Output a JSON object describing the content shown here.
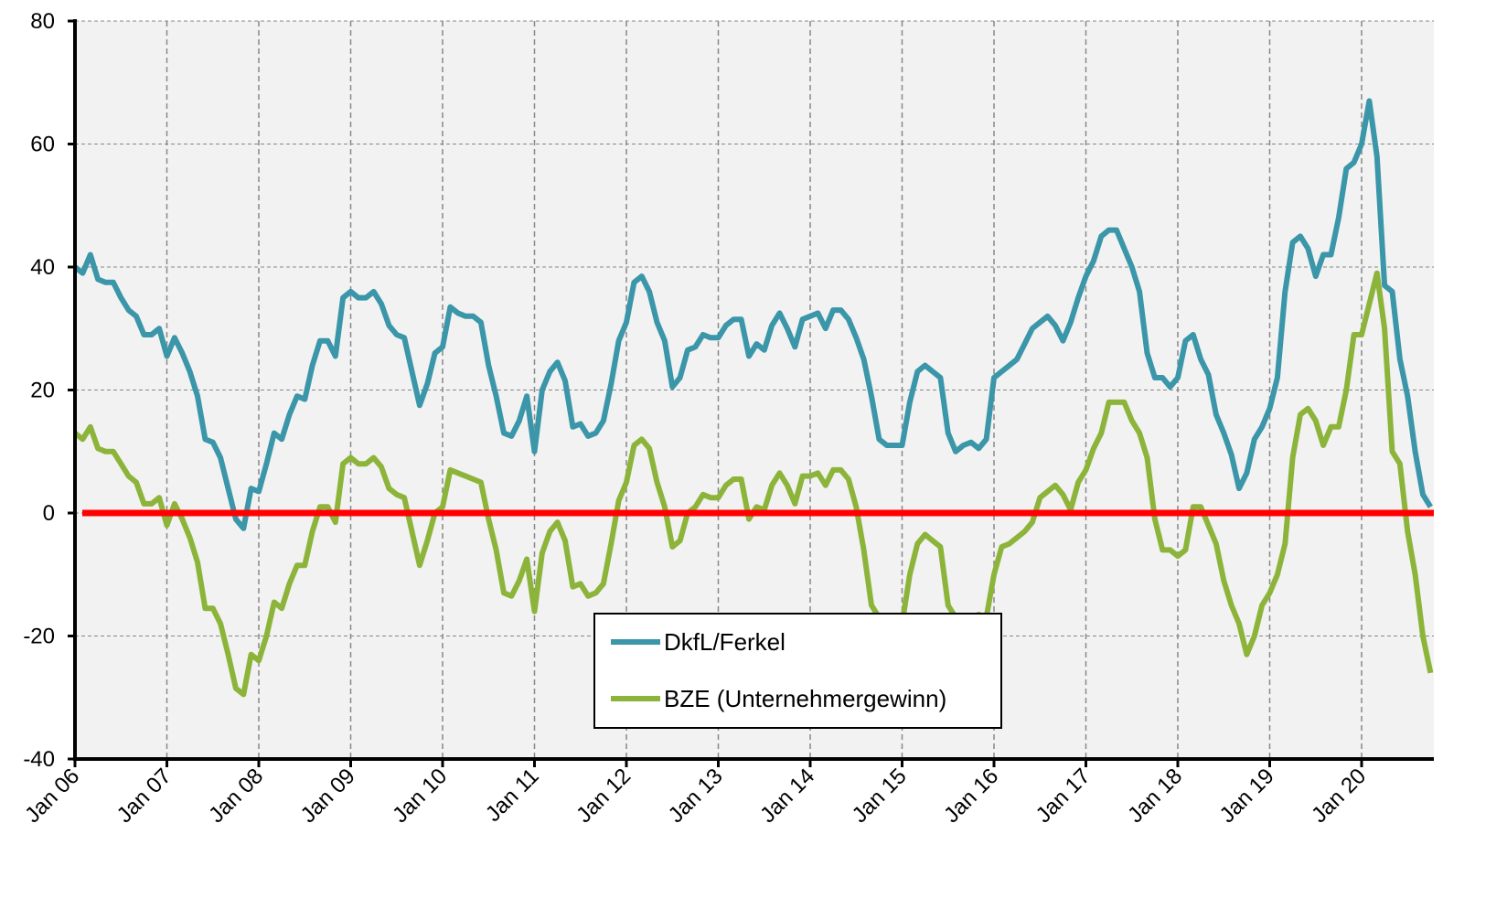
{
  "chart_data": {
    "type": "line",
    "categories": [
      "Jan 06",
      null,
      null,
      null,
      null,
      null,
      null,
      null,
      null,
      null,
      null,
      null,
      "Jan 07",
      null,
      null,
      null,
      null,
      null,
      null,
      null,
      null,
      null,
      null,
      null,
      "Jan 08",
      null,
      null,
      null,
      null,
      null,
      null,
      null,
      null,
      null,
      null,
      null,
      "Jan 09",
      null,
      null,
      null,
      null,
      null,
      null,
      null,
      null,
      null,
      null,
      null,
      "Jan 10",
      null,
      null,
      null,
      null,
      null,
      null,
      null,
      null,
      null,
      null,
      null,
      "Jan 11",
      null,
      null,
      null,
      null,
      null,
      null,
      null,
      null,
      null,
      null,
      null,
      "Jan 12",
      null,
      null,
      null,
      null,
      null,
      null,
      null,
      null,
      null,
      null,
      null,
      "Jan 13",
      null,
      null,
      null,
      null,
      null,
      null,
      null,
      null,
      null,
      null,
      null,
      "Jan 14",
      null,
      null,
      null,
      null,
      null,
      null,
      null,
      null,
      null,
      null,
      null,
      "Jan 15",
      null,
      null,
      null,
      null,
      null,
      null,
      null,
      null,
      null,
      null,
      null,
      "Jan 16",
      null,
      null,
      null,
      null,
      null,
      null,
      null,
      null,
      null,
      null,
      null,
      "Jan 17",
      null,
      null,
      null,
      null,
      null,
      null,
      null,
      null,
      null,
      null,
      null,
      "Jan 18",
      null,
      null,
      null,
      null,
      null,
      null,
      null,
      null,
      null,
      null,
      null,
      "Jan 19",
      null,
      null,
      null,
      null,
      null,
      null,
      null,
      null,
      null,
      null,
      null,
      "Jan 20",
      null,
      null,
      null,
      null,
      null,
      null,
      null,
      null,
      null
    ],
    "series": [
      {
        "name": "DkfL/Ferkel",
        "color": "#3a96a8",
        "values": [
          40,
          39,
          42,
          38,
          37.5,
          37.5,
          35,
          33,
          32,
          29,
          29,
          30,
          25.5,
          28.5,
          26,
          23,
          19,
          12,
          11.5,
          9,
          4,
          -1,
          -2.5,
          4,
          3.5,
          8,
          13,
          12,
          16,
          19,
          18.5,
          24,
          28,
          28,
          25.5,
          35,
          36,
          35,
          35,
          36,
          34,
          30.5,
          29,
          28.5,
          23,
          17.5,
          21,
          26,
          27,
          33.5,
          32.5,
          32,
          32,
          31,
          24,
          19,
          13,
          12.5,
          15,
          19,
          10,
          20,
          23,
          24.5,
          21.5,
          14,
          14.5,
          12.5,
          13,
          15,
          21,
          28,
          31,
          37.5,
          38.5,
          36,
          31,
          28,
          20.5,
          22,
          26.5,
          27,
          29,
          28.5,
          28.5,
          30.5,
          31.5,
          31.5,
          25.5,
          27.5,
          26.5,
          30.5,
          32.5,
          30,
          27,
          31.5,
          32,
          32.5,
          30,
          33,
          33,
          31.5,
          28.5,
          25,
          19,
          12,
          11,
          11,
          11,
          18,
          23,
          24,
          23,
          22,
          13,
          10,
          11,
          11.5,
          10.5,
          12,
          22,
          23,
          24,
          25,
          27.5,
          30,
          31,
          32,
          30.5,
          28,
          31,
          35,
          38.5,
          41,
          45,
          46,
          46,
          43,
          40,
          36,
          26,
          22,
          22,
          20.5,
          22,
          28,
          29,
          25,
          22.5,
          16,
          13,
          9.5,
          4,
          6.5,
          12,
          14,
          17,
          22,
          36,
          44,
          45,
          43,
          38.5,
          42,
          42,
          48,
          56,
          57,
          60,
          67,
          58,
          37,
          36,
          25,
          19,
          10,
          3,
          1
        ]
      },
      {
        "name": "BZE (Unternehmergewinn)",
        "color": "#8db43a",
        "values": [
          13,
          12,
          14,
          10.5,
          10,
          10,
          8,
          6,
          5,
          1.5,
          1.5,
          2.5,
          -2,
          1.5,
          -1,
          -4,
          -8,
          -15.5,
          -15.5,
          -18,
          -23,
          -28.5,
          -29.5,
          -23,
          -24,
          -20,
          -14.5,
          -15.5,
          -11.5,
          -8.5,
          -8.5,
          -3,
          1,
          1,
          -1.5,
          8,
          9,
          8,
          8,
          9,
          7.5,
          4,
          3,
          2.5,
          -3,
          -8.5,
          -4.5,
          0,
          1,
          7,
          6.5,
          6,
          5.5,
          5,
          -1,
          -6,
          -13,
          -13.5,
          -11,
          -7.5,
          -16,
          -6.5,
          -3,
          -1.5,
          -4.5,
          -12,
          -11.5,
          -13.5,
          -13,
          -11.5,
          -5,
          2,
          5,
          11,
          12,
          10.5,
          5,
          1,
          -5.5,
          -4.5,
          0,
          1,
          3,
          2.5,
          2.5,
          4.5,
          5.5,
          5.5,
          -1,
          1,
          0.5,
          4.5,
          6.5,
          4.5,
          1.5,
          6,
          6,
          6.5,
          4.5,
          7,
          7,
          5.5,
          1,
          -6,
          -15,
          -17,
          -17.5,
          -17,
          -18,
          -10,
          -5,
          -3.5,
          -4.5,
          -5.5,
          -15,
          -17,
          -17,
          -17,
          -16.5,
          -17,
          -10,
          -5.5,
          -5,
          -4,
          -3,
          -1.5,
          2.5,
          3.5,
          4.5,
          3,
          0.5,
          5,
          7,
          10.5,
          13,
          18,
          18,
          18,
          15,
          13,
          9,
          -1,
          -6,
          -6,
          -7,
          -6,
          1,
          1,
          -2,
          -5,
          -11,
          -15,
          -18,
          -23,
          -20,
          -15,
          -13,
          -10,
          -5,
          9,
          16,
          17,
          15,
          11,
          14,
          14,
          20,
          29,
          29,
          34,
          39,
          30,
          10,
          8,
          -3,
          -10,
          -20,
          -26
        ]
      }
    ],
    "reference_line": {
      "value": 0,
      "color": "#ff0000"
    },
    "ylim": [
      -40,
      80
    ],
    "yticks": [
      -40,
      -20,
      0,
      20,
      40,
      60,
      80
    ],
    "grid": true,
    "legend": "bottom"
  }
}
